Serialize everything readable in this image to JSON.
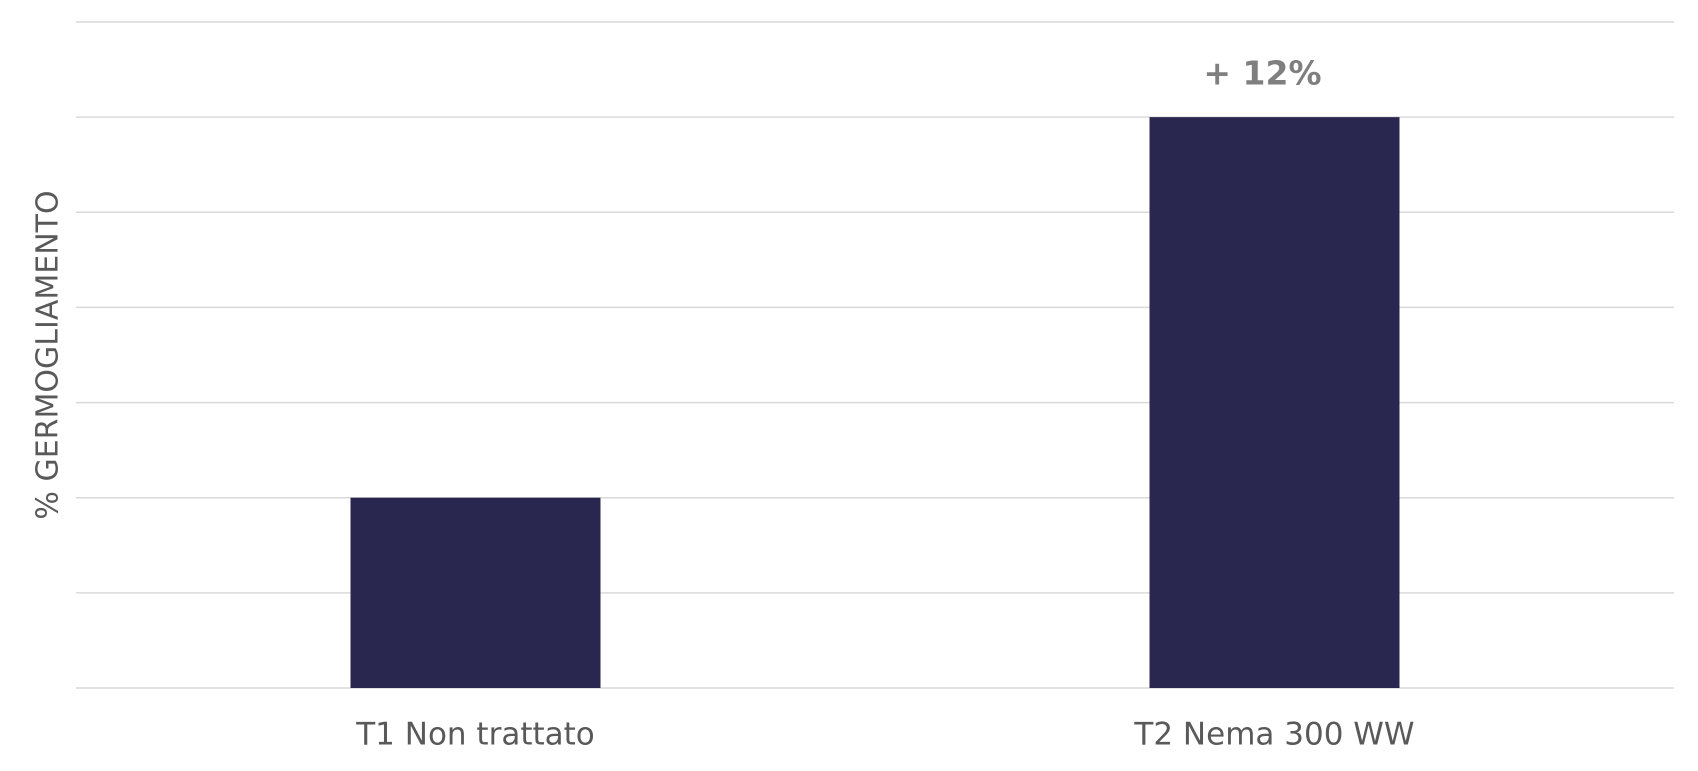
{
  "chart_data": {
    "type": "bar",
    "y_label": "% GERMOGLIAMENTO",
    "categories": [
      "T1  Non trattato",
      "T2  Nema 300 WW"
    ],
    "values": [
      2,
      6
    ],
    "color": "#29264f",
    "annotation": "+ 12%",
    "ylim": [
      0,
      7
    ],
    "yticks": [
      0,
      1,
      2,
      3,
      4,
      5,
      6,
      7
    ],
    "grid": true
  }
}
